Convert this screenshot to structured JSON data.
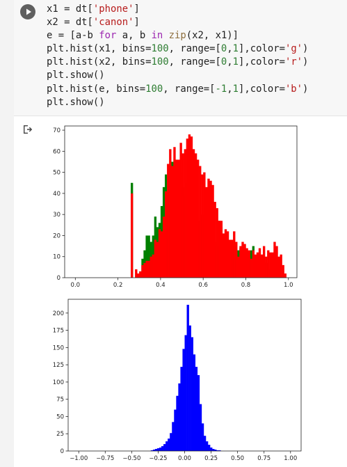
{
  "code_cell": {
    "lines": [
      [
        {
          "t": "x1 = dt[",
          "c": ""
        },
        {
          "t": "'phone'",
          "c": "str"
        },
        {
          "t": "]",
          "c": ""
        }
      ],
      [
        {
          "t": "x2 = dt[",
          "c": ""
        },
        {
          "t": "'canon'",
          "c": "str"
        },
        {
          "t": "]",
          "c": ""
        }
      ],
      [
        {
          "t": "e = [a-b ",
          "c": ""
        },
        {
          "t": "for",
          "c": "kw"
        },
        {
          "t": " a, b ",
          "c": ""
        },
        {
          "t": "in",
          "c": "kw"
        },
        {
          "t": " ",
          "c": ""
        },
        {
          "t": "zip",
          "c": "fn"
        },
        {
          "t": "(x2, x1)]",
          "c": ""
        }
      ],
      [
        {
          "t": "plt.hist(x1, bins=",
          "c": ""
        },
        {
          "t": "100",
          "c": "num"
        },
        {
          "t": ", range=[",
          "c": ""
        },
        {
          "t": "0",
          "c": "num"
        },
        {
          "t": ",",
          "c": ""
        },
        {
          "t": "1",
          "c": "num"
        },
        {
          "t": "],color=",
          "c": ""
        },
        {
          "t": "'g'",
          "c": "str"
        },
        {
          "t": ")",
          "c": ""
        }
      ],
      [
        {
          "t": "plt.hist(x2, bins=",
          "c": ""
        },
        {
          "t": "100",
          "c": "num"
        },
        {
          "t": ", range=[",
          "c": ""
        },
        {
          "t": "0",
          "c": "num"
        },
        {
          "t": ",",
          "c": ""
        },
        {
          "t": "1",
          "c": "num"
        },
        {
          "t": "],color=",
          "c": ""
        },
        {
          "t": "'r'",
          "c": "str"
        },
        {
          "t": ")",
          "c": ""
        }
      ],
      [
        {
          "t": "plt.show()",
          "c": ""
        }
      ],
      [
        {
          "t": "plt.hist(e, bins=",
          "c": ""
        },
        {
          "t": "100",
          "c": "num"
        },
        {
          "t": ", range=[",
          "c": ""
        },
        {
          "t": "-1",
          "c": "num"
        },
        {
          "t": ",",
          "c": ""
        },
        {
          "t": "1",
          "c": "num"
        },
        {
          "t": "],color=",
          "c": ""
        },
        {
          "t": "'b'",
          "c": "str"
        },
        {
          "t": ")",
          "c": ""
        }
      ],
      [
        {
          "t": "plt.show()",
          "c": ""
        }
      ]
    ]
  },
  "icons": {
    "run": "play-circle-icon",
    "output": "output-arrow-icon"
  },
  "colors": {
    "green": "#008000",
    "red": "#ff0000",
    "blue": "#0000ff"
  },
  "chart_data": [
    {
      "type": "bar",
      "title": "",
      "xlim": [
        -0.05,
        1.04
      ],
      "ylim": [
        0,
        72
      ],
      "xticks": [
        0.0,
        0.2,
        0.4,
        0.6,
        0.8,
        1.0
      ],
      "xtick_labels": [
        "0.0",
        "0.2",
        "0.4",
        "0.6",
        "0.8",
        "1.0"
      ],
      "yticks": [
        0,
        10,
        20,
        30,
        40,
        50,
        60,
        70
      ],
      "ytick_labels": [
        "0",
        "10",
        "20",
        "30",
        "40",
        "50",
        "60",
        "70"
      ],
      "bin_start": 0.26,
      "bin_width": 0.01,
      "series": [
        {
          "color": "#008000",
          "values": [
            45,
            0,
            0,
            0,
            3,
            9,
            13,
            20,
            20,
            17,
            20,
            29,
            24,
            26,
            34,
            43,
            49,
            34,
            53,
            55,
            49,
            34,
            24,
            50,
            43,
            39,
            45,
            34,
            39,
            37,
            33,
            25,
            27,
            30,
            26,
            24,
            20,
            22,
            19,
            17,
            15,
            27,
            24,
            17,
            18,
            16,
            16,
            16,
            15,
            11,
            13,
            14,
            9,
            13,
            11,
            12,
            13,
            15,
            10,
            11,
            10,
            8,
            7,
            7,
            4,
            2,
            1,
            1,
            1,
            0,
            0,
            0,
            0,
            0,
            0
          ]
        },
        {
          "color": "#ff0000",
          "values": [
            40,
            0,
            4,
            2,
            3,
            6,
            7,
            8,
            8,
            10,
            11,
            18,
            17,
            23,
            22,
            29,
            41,
            54,
            61,
            53,
            62,
            56,
            56,
            64,
            59,
            61,
            66,
            68,
            67,
            61,
            59,
            56,
            53,
            49,
            50,
            43,
            47,
            46,
            44,
            36,
            33,
            27,
            27,
            21,
            23,
            22,
            18,
            18,
            22,
            17,
            10,
            15,
            17,
            16,
            14,
            13,
            9,
            13,
            11,
            12,
            14,
            11,
            15,
            10,
            13,
            12,
            12,
            17,
            15,
            10,
            11,
            6,
            2,
            0,
            0
          ]
        }
      ]
    },
    {
      "type": "bar",
      "title": "",
      "xlim": [
        -1.1,
        1.1
      ],
      "ylim": [
        0,
        220
      ],
      "xticks": [
        -1.0,
        -0.75,
        -0.5,
        -0.25,
        0.0,
        0.25,
        0.5,
        0.75,
        1.0
      ],
      "xtick_labels": [
        "−1.00",
        "−0.75",
        "−0.50",
        "−0.25",
        "0.00",
        "0.25",
        "0.50",
        "0.75",
        "1.00"
      ],
      "yticks": [
        0,
        25,
        50,
        75,
        100,
        125,
        150,
        175,
        200
      ],
      "ytick_labels": [
        "0",
        "25",
        "50",
        "75",
        "100",
        "125",
        "150",
        "175",
        "200"
      ],
      "bin_start": -0.32,
      "bin_width": 0.02,
      "series": [
        {
          "color": "#0000ff",
          "values": [
            1,
            2,
            3,
            4,
            5,
            7,
            10,
            14,
            18,
            26,
            42,
            60,
            80,
            98,
            122,
            148,
            168,
            212,
            182,
            165,
            140,
            122,
            110,
            68,
            40,
            22,
            14,
            9,
            5,
            3,
            2,
            1,
            1
          ]
        }
      ]
    }
  ]
}
